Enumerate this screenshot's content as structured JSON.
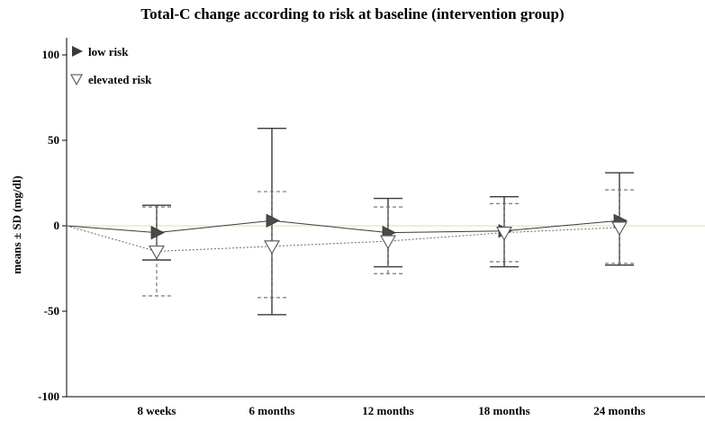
{
  "chart_data": {
    "type": "line",
    "title": "Total-C change according to risk at baseline (intervention group)",
    "ylabel": "means ± SD (mg/dl)",
    "xlabel": "",
    "ylim": [
      -100,
      110
    ],
    "yticks": [
      100,
      50,
      0,
      -50,
      -100
    ],
    "categories": [
      "",
      "8 weeks",
      "6 months",
      "12 months",
      "18 months",
      "24 months",
      ""
    ],
    "reference_line": {
      "y": 0,
      "color": "#e8e4c0"
    },
    "series": [
      {
        "name": "low risk",
        "marker": "filled-right-triangle",
        "line_style": "solid",
        "color": "#3a3a3a",
        "points": [
          {
            "x": 0,
            "y": 0
          },
          {
            "x": 1,
            "y": -4,
            "sd_high": 12,
            "sd_low": -20
          },
          {
            "x": 2,
            "y": 3,
            "sd_high": 57,
            "sd_low": -52
          },
          {
            "x": 3,
            "y": -4,
            "sd_high": 16,
            "sd_low": -24
          },
          {
            "x": 4,
            "y": -3,
            "sd_high": 17,
            "sd_low": -24
          },
          {
            "x": 5,
            "y": 3,
            "sd_high": 31,
            "sd_low": -23
          }
        ]
      },
      {
        "name": "elevated risk",
        "marker": "open-down-triangle",
        "line_style": "dotted",
        "color": "#6a6a6a",
        "points": [
          {
            "x": 0,
            "y": 0
          },
          {
            "x": 1,
            "y": -15,
            "sd_high": 11,
            "sd_low": -41
          },
          {
            "x": 2,
            "y": -12,
            "sd_high": 20,
            "sd_low": -42
          },
          {
            "x": 3,
            "y": -9,
            "sd_high": 11,
            "sd_low": -28
          },
          {
            "x": 4,
            "y": -4,
            "sd_high": 13,
            "sd_low": -21
          },
          {
            "x": 5,
            "y": -1,
            "sd_high": 21,
            "sd_low": -22
          }
        ]
      }
    ],
    "legend_placement": "top-left"
  }
}
